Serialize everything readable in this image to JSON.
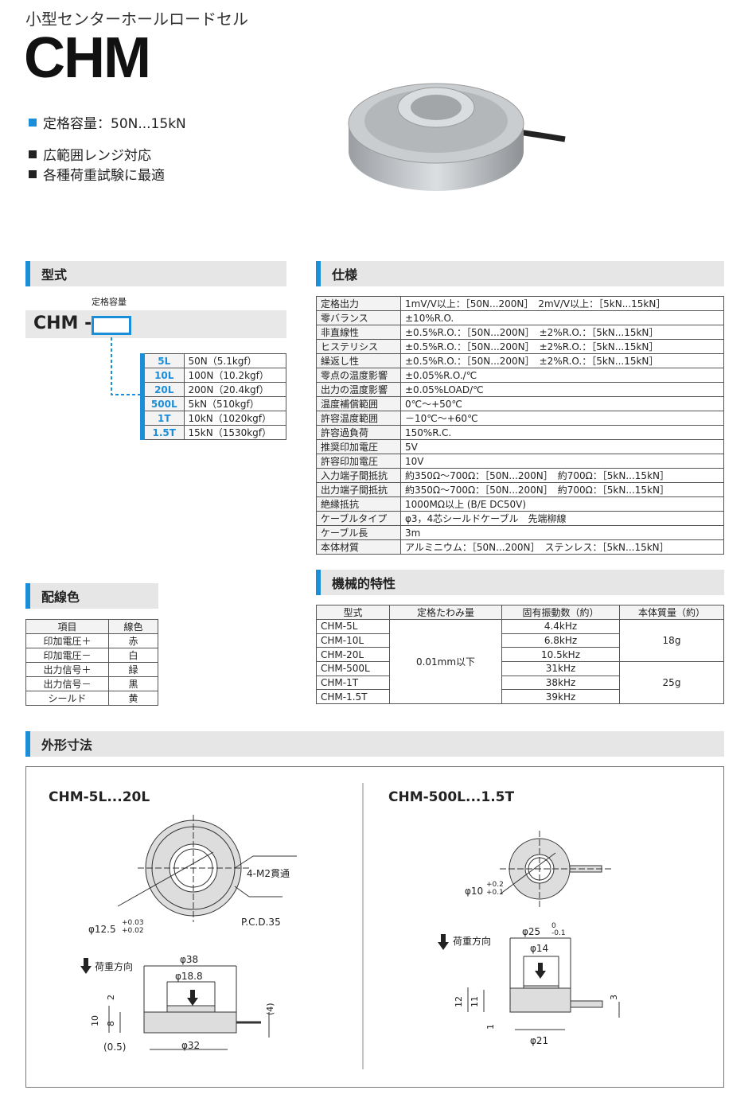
{
  "header": {
    "subtitle": "小型センターホールロードセル",
    "model": "CHM"
  },
  "features": [
    {
      "text": "定格容量：50N...15kN",
      "color": "#1a8ed8"
    },
    {
      "text": "広範囲レンジ対応",
      "color": "#222222"
    },
    {
      "text": "各種荷重試験に最適",
      "color": "#222222"
    }
  ],
  "accent": "#1a8ed8",
  "model_section": {
    "title": "型式",
    "capacity_label": "定格容量",
    "prefix": "CHM -",
    "rows": [
      [
        "5L",
        "50N（5.1kgf）"
      ],
      [
        "10L",
        "100N（10.2kgf）"
      ],
      [
        "20L",
        "200N（20.4kgf）"
      ],
      [
        "500L",
        "5kN（510kgf）"
      ],
      [
        "1T",
        "10kN（1020kgf）"
      ],
      [
        "1.5T",
        "15kN（1530kgf）"
      ]
    ]
  },
  "spec": {
    "title": "仕様",
    "rows": [
      [
        "定格出力",
        "1mV/V以上：［50N...200N］　2mV/V以上：［5kN...15kN］"
      ],
      [
        "零バランス",
        "±10%R.O."
      ],
      [
        "非直線性",
        "±0.5%R.O.：［50N...200N］　±2%R.O.：［5kN...15kN］"
      ],
      [
        "ヒステリシス",
        "±0.5%R.O.：［50N...200N］　±2%R.O.：［5kN...15kN］"
      ],
      [
        "繰返し性",
        "±0.5%R.O.：［50N...200N］　±2%R.O.：［5kN...15kN］"
      ],
      [
        "零点の温度影響",
        "±0.05%R.O./℃"
      ],
      [
        "出力の温度影響",
        "±0.05%LOAD/℃"
      ],
      [
        "温度補償範囲",
        "0℃～+50℃"
      ],
      [
        "許容温度範囲",
        "－10℃～+60℃"
      ],
      [
        "許容過負荷",
        "150%R.C."
      ],
      [
        "推奨印加電圧",
        "5V"
      ],
      [
        "許容印加電圧",
        "10V"
      ],
      [
        "入力端子間抵抗",
        "約350Ω～700Ω：［50N...200N］　約700Ω：［5kN...15kN］"
      ],
      [
        "出力端子間抵抗",
        "約350Ω～700Ω：［50N...200N］　約700Ω：［5kN...15kN］"
      ],
      [
        "絶縁抵抗",
        "1000MΩ以上 (B/E DC50V)"
      ],
      [
        "ケーブルタイプ",
        "φ3，4芯シールドケーブル　先端柳線"
      ],
      [
        "ケーブル長",
        "3m"
      ],
      [
        "本体材質",
        "アルミニウム：［50N...200N］　ステンレス：［5kN...15kN］"
      ]
    ]
  },
  "wiring": {
    "title": "配線色",
    "headers": [
      "項目",
      "線色"
    ],
    "rows": [
      [
        "印加電圧＋",
        "赤"
      ],
      [
        "印加電圧－",
        "白"
      ],
      [
        "出力信号＋",
        "緑"
      ],
      [
        "出力信号－",
        "黒"
      ],
      [
        "シールド",
        "黄"
      ]
    ]
  },
  "mech": {
    "title": "機械的特性",
    "headers": [
      "型式",
      "定格たわみ量",
      "固有振動数（約）",
      "本体質量（約）"
    ],
    "models": [
      "CHM-5L",
      "CHM-10L",
      "CHM-20L",
      "CHM-500L",
      "CHM-1T",
      "CHM-1.5T"
    ],
    "deflection": "0.01mm以下",
    "freq": [
      "4.4kHz",
      "6.8kHz",
      "10.5kHz",
      "31kHz",
      "38kHz",
      "39kHz"
    ],
    "mass": [
      "18g",
      "25g"
    ]
  },
  "dims": {
    "title": "外形寸法",
    "left": {
      "title": "CHM-5L...20L",
      "hole": "4-M2貫通",
      "pcd": "P.C.D.35",
      "bore": "φ12.5",
      "bore_tol_up": "+0.03",
      "bore_tol_lo": "+0.02",
      "load": "荷重方向",
      "d38": "φ38",
      "d188": "φ18.8",
      "h2": "2",
      "h10": "10",
      "h8": "8",
      "h05": "(0.5)",
      "d32": "φ32",
      "h4": "(4)"
    },
    "right": {
      "title": "CHM-500L...1.5T",
      "bore": "φ10",
      "bore_tol_up": "+0.2",
      "bore_tol_lo": "+0.1",
      "load": "荷重方向",
      "d25": "φ25",
      "d25_up": "0",
      "d25_lo": "-0.1",
      "d14": "φ14",
      "h12": "12",
      "h11": "11",
      "h1": "1",
      "h3": "3",
      "d21": "φ21"
    }
  }
}
